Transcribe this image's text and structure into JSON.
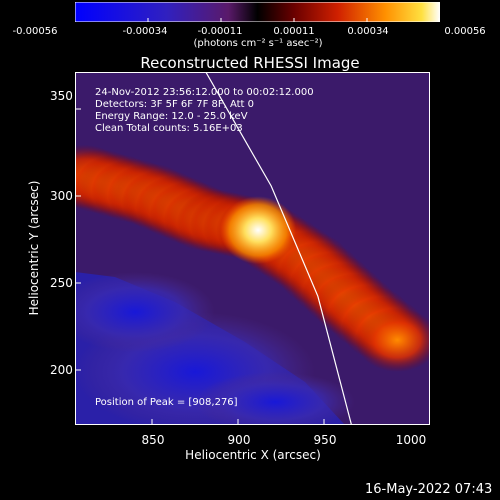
{
  "chart_data": {
    "type": "heatmap",
    "title": "Reconstructed RHESSI Image",
    "xlabel": "Heliocentric X (arcsec)",
    "ylabel": "Heliocentric Y (arcsec)",
    "xlim": [
      810,
      1000
    ],
    "ylim": [
      170,
      362
    ],
    "x_ticks": [
      "850",
      "900",
      "950",
      "1000"
    ],
    "y_ticks": [
      "200",
      "250",
      "300",
      "350"
    ],
    "colorbar": {
      "ticks": [
        "-0.00056",
        "-0.00034",
        "-0.00011",
        "0.00011",
        "0.00034",
        "0.00056"
      ],
      "units_label": "(photons cm⁻² s⁻¹ asec⁻²)",
      "range": [
        -0.00056,
        0.00056
      ]
    },
    "annotations": {
      "time_range": "24-Nov-2012 23:56:12.000 to 00:02:12.000",
      "detectors": "Detectors: 3F 5F 6F 7F 8F, Att 0",
      "energy": "Energy Range: 12.0 - 25.0 keV",
      "clean": "Clean     Total counts: 5.16E+03",
      "peak": "Position of Peak = [908,276]"
    },
    "peak": [
      908,
      276
    ],
    "limb_curve": [
      [
        880,
        362
      ],
      [
        915,
        300
      ],
      [
        940,
        240
      ],
      [
        958,
        170
      ]
    ],
    "emission_ridge": [
      [
        815,
        305
      ],
      [
        850,
        295
      ],
      [
        880,
        282
      ],
      [
        908,
        276
      ],
      [
        935,
        258
      ],
      [
        960,
        235
      ],
      [
        990,
        210
      ]
    ],
    "grid": false
  },
  "footer": {
    "timestamp": "16-May-2022 07:43"
  },
  "colors": {
    "background": "#000000",
    "text": "#ffffff"
  }
}
